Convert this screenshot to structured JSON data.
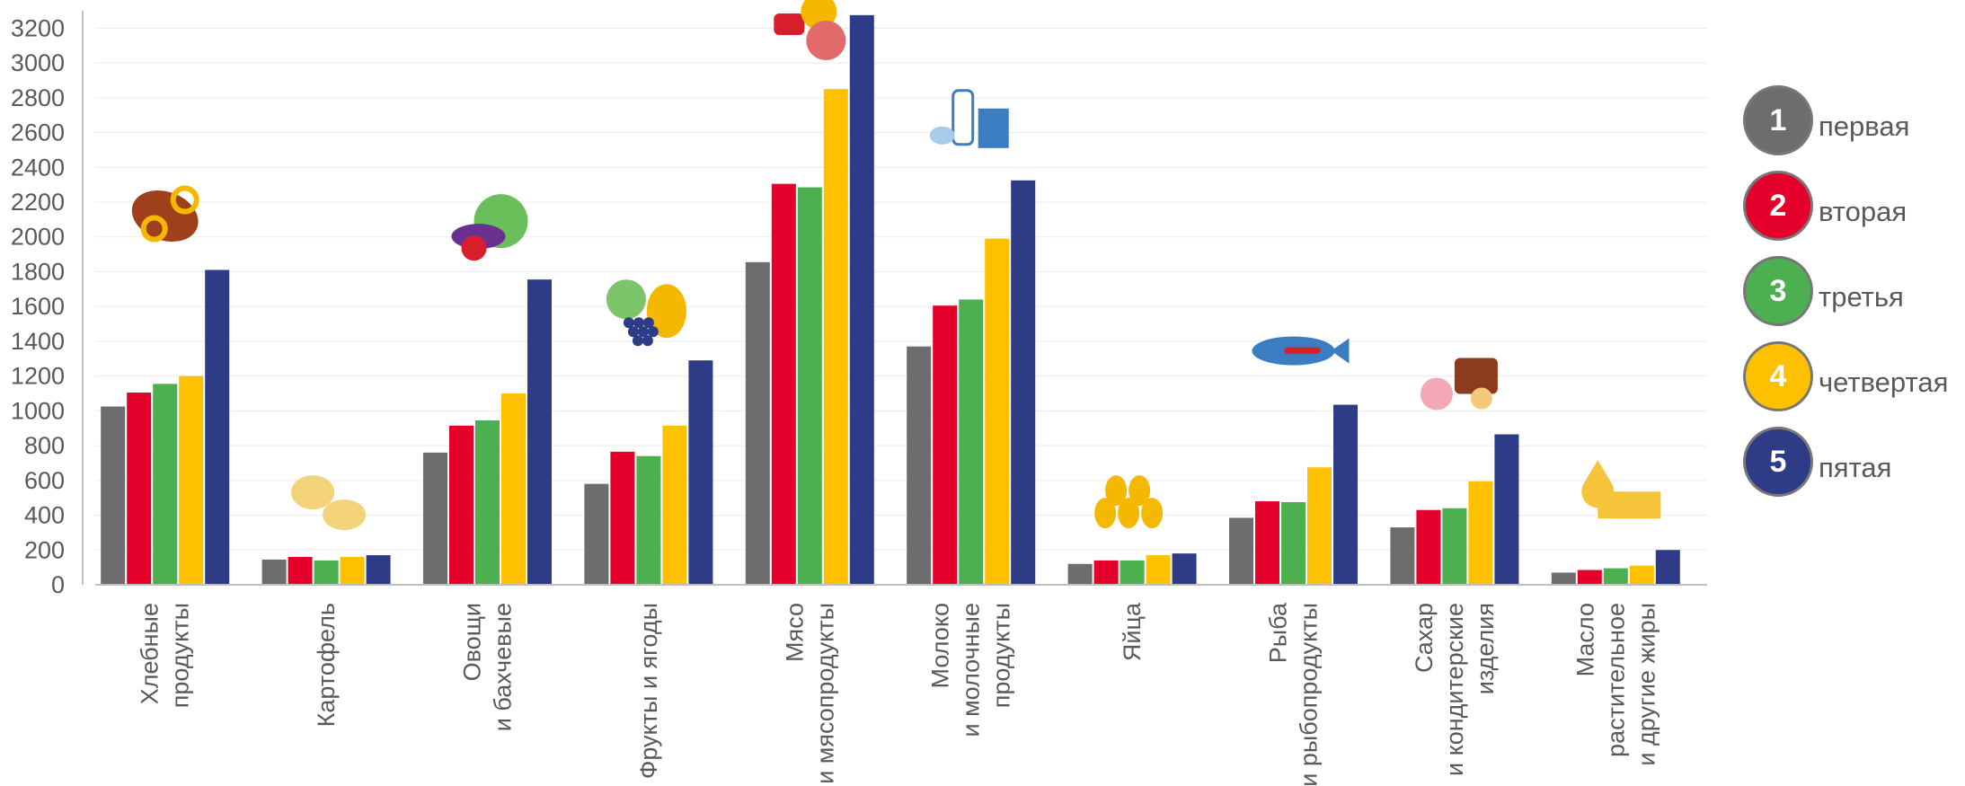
{
  "chart_data": {
    "type": "bar",
    "categories": [
      [
        "Хлебные",
        "продукты"
      ],
      [
        "Картофель"
      ],
      [
        "Овощи",
        "и бахчевые"
      ],
      [
        "Фрукты и ягоды"
      ],
      [
        "Мясо",
        "и мясопродукты"
      ],
      [
        "Молоко",
        "и молочные",
        "продукты"
      ],
      [
        "Яйца"
      ],
      [
        "Рыба",
        "и рыбопродукты"
      ],
      [
        "Сахар",
        "и кондитерские",
        "изделия"
      ],
      [
        "Масло",
        "растительное",
        "и другие жиры"
      ]
    ],
    "series": [
      {
        "name": "первая",
        "number": "1",
        "color": "#6d6d6d",
        "values": [
          1025,
          145,
          760,
          580,
          1855,
          1370,
          120,
          385,
          330,
          70
        ]
      },
      {
        "name": "вторая",
        "number": "2",
        "color": "#e4002b",
        "values": [
          1105,
          160,
          915,
          765,
          2305,
          1605,
          140,
          480,
          430,
          85
        ]
      },
      {
        "name": "третья",
        "number": "3",
        "color": "#4caf50",
        "values": [
          1155,
          140,
          945,
          740,
          2285,
          1640,
          140,
          475,
          440,
          95
        ]
      },
      {
        "name": "четвертая",
        "number": "4",
        "color": "#ffc000",
        "values": [
          1200,
          160,
          1100,
          915,
          2850,
          1990,
          170,
          675,
          595,
          110
        ]
      },
      {
        "name": "пятая",
        "number": "5",
        "color": "#2e3b87",
        "values": [
          1810,
          170,
          1755,
          1290,
          3275,
          2325,
          180,
          1035,
          865,
          200
        ]
      }
    ],
    "y_ticks": [
      "0",
      "200",
      "400",
      "600",
      "800",
      "1000",
      "1200",
      "1400",
      "1600",
      "1800",
      "2000",
      "2200",
      "2400",
      "2600",
      "2800",
      "3000",
      "3200"
    ],
    "ylim": [
      0,
      3300
    ],
    "grid": true,
    "legend_position": "right",
    "icons": [
      "bread-icon",
      "potato-icon",
      "vegetables-icon",
      "fruits-icon",
      "meat-icon",
      "dairy-icon",
      "eggs-icon",
      "fish-icon",
      "sweets-icon",
      "oil-icon"
    ]
  }
}
